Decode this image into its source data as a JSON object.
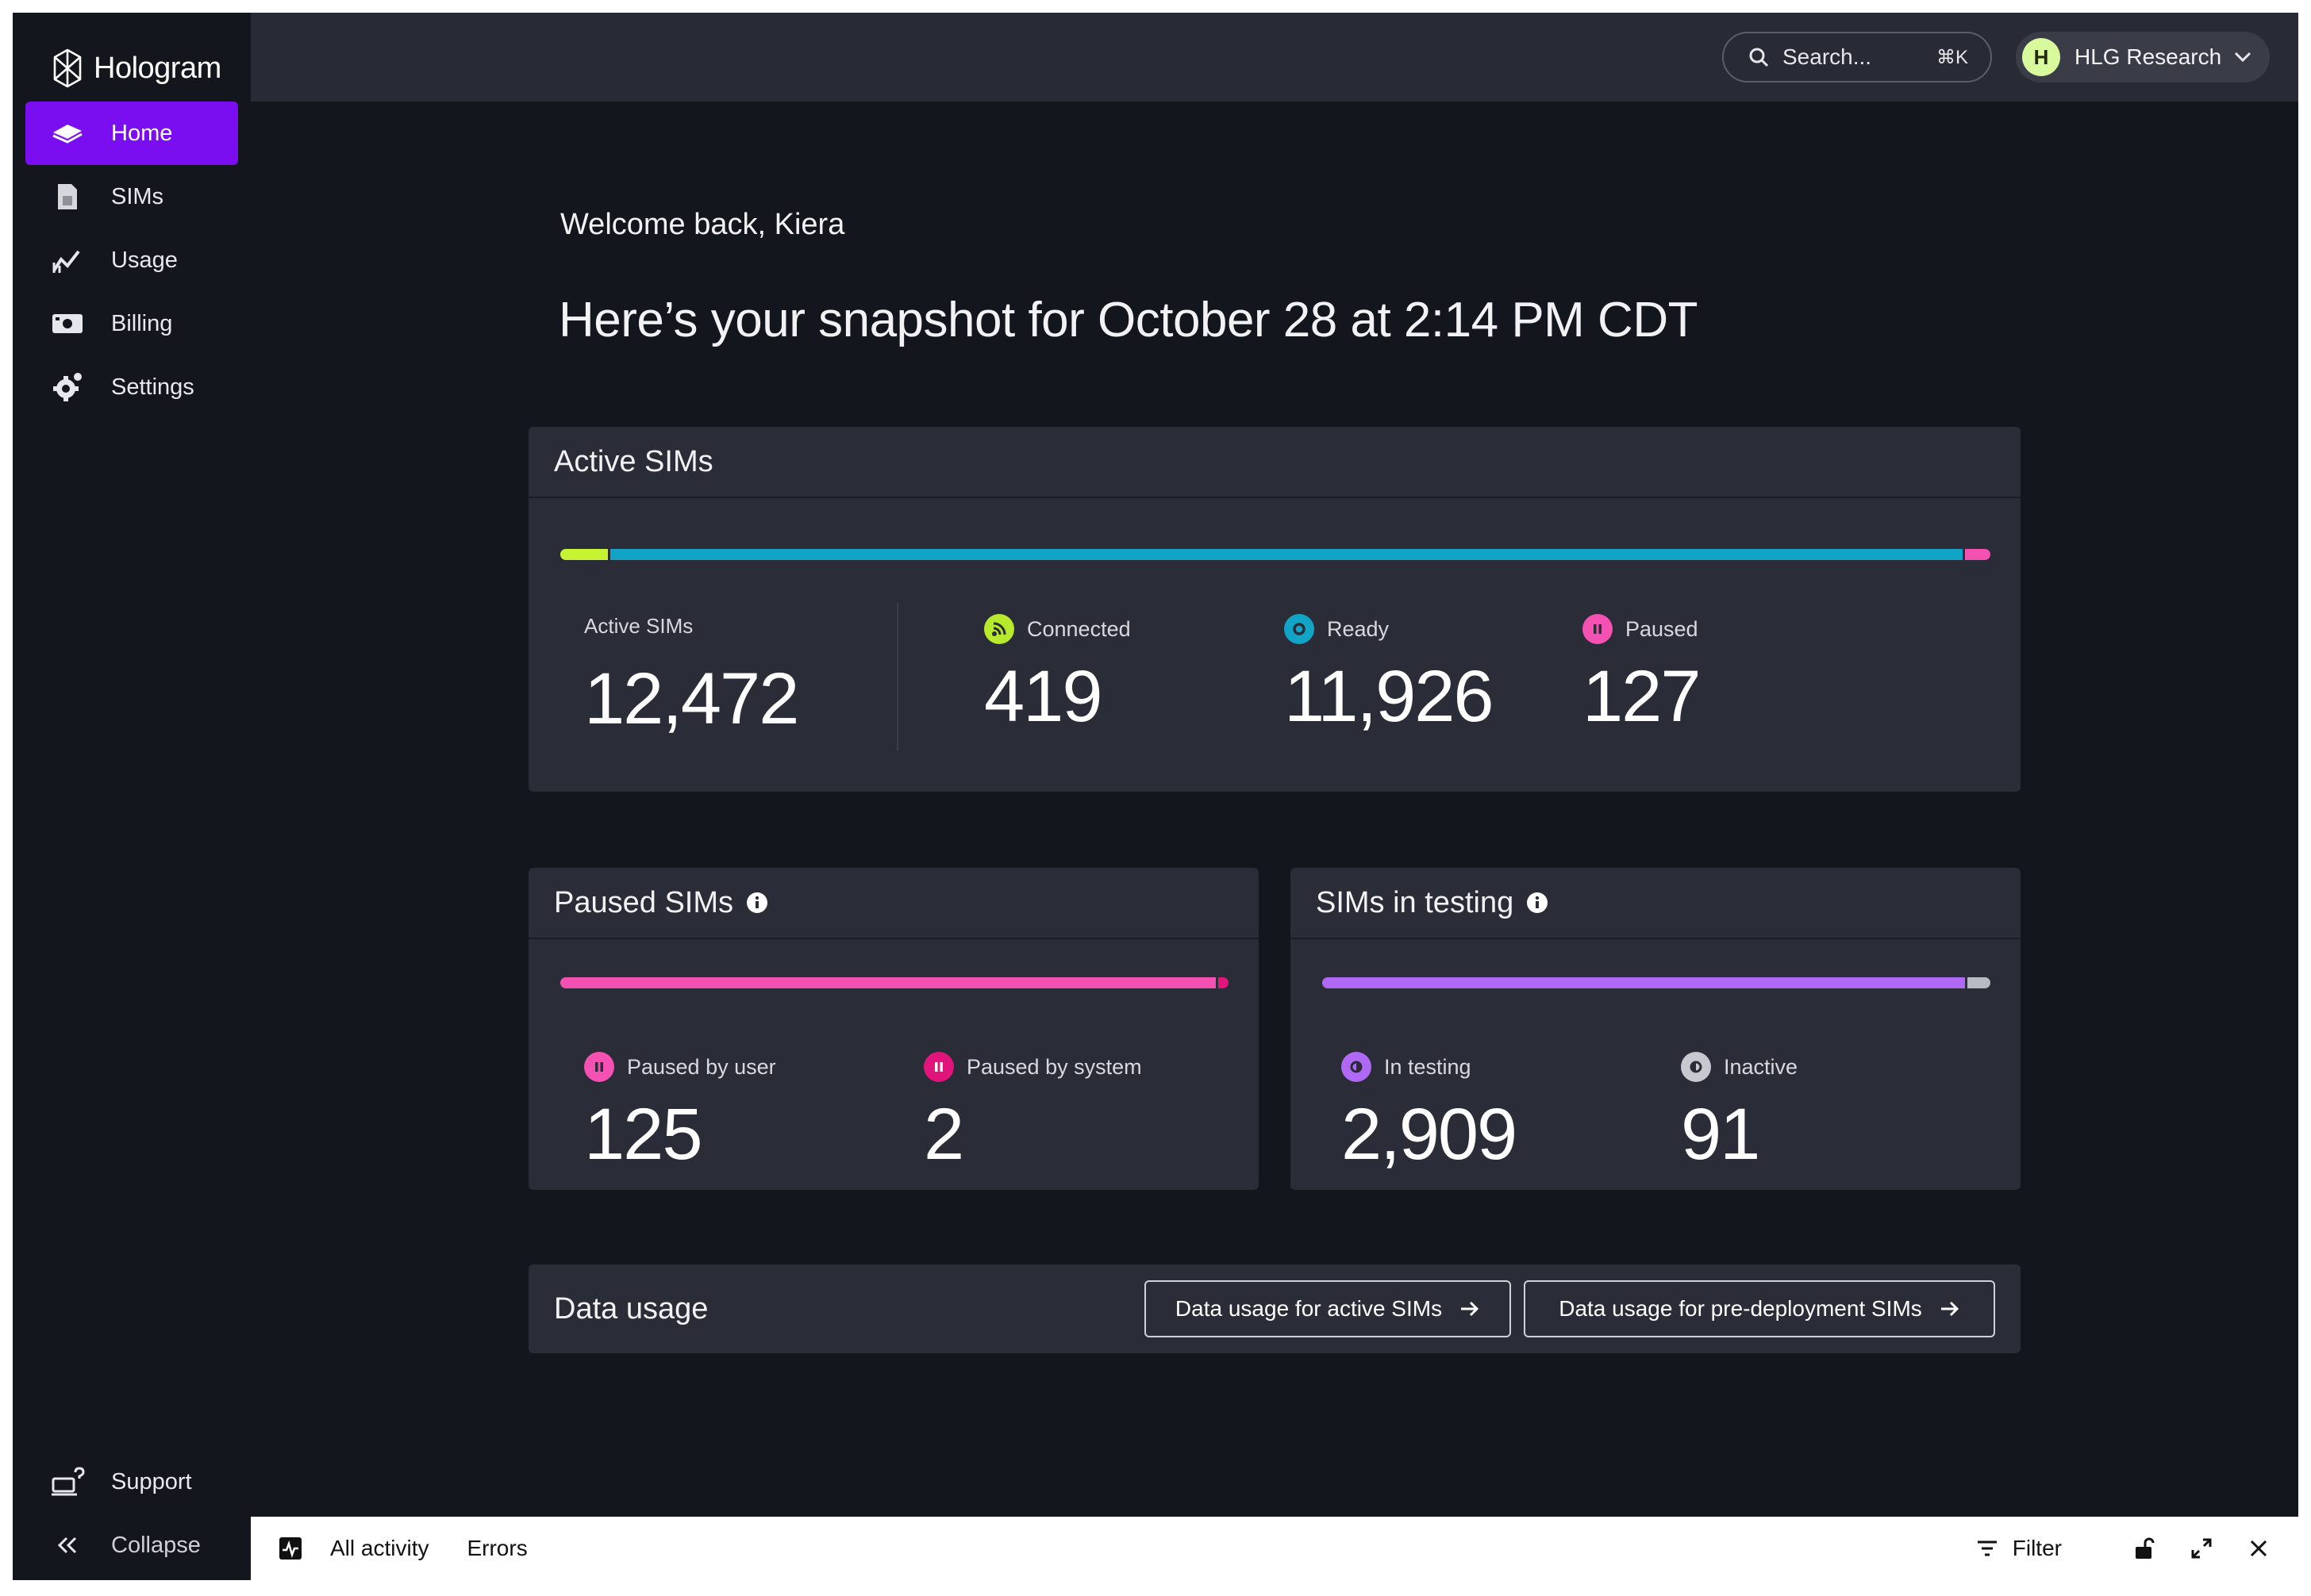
{
  "brand": {
    "name": "Hologram"
  },
  "sidebar": {
    "items": [
      {
        "label": "Home",
        "icon": "home-icon",
        "active": true
      },
      {
        "label": "SIMs",
        "icon": "sim-icon"
      },
      {
        "label": "Usage",
        "icon": "usage-chart-icon"
      },
      {
        "label": "Billing",
        "icon": "billing-icon"
      },
      {
        "label": "Settings",
        "icon": "gear-icon"
      }
    ],
    "bottom": [
      {
        "label": "Support",
        "icon": "support-icon"
      },
      {
        "label": "Collapse",
        "icon": "double-chevron-left-icon"
      }
    ]
  },
  "topbar": {
    "search_placeholder": "Search...",
    "search_shortcut": "⌘K",
    "account_initial": "H",
    "account_name": "HLG Research"
  },
  "main": {
    "welcome": "Welcome back, Kiera",
    "snapshot": "Here’s your snapshot for October 28 at 2:14 PM CDT"
  },
  "active_sims": {
    "title": "Active SIMs",
    "total_label": "Active SIMs",
    "total_value": "12,472",
    "bar": [
      {
        "name": "Connected",
        "value": 419,
        "color": "#c6f432"
      },
      {
        "name": "Ready",
        "value": 11926,
        "color": "#12a4c7"
      },
      {
        "name": "Paused",
        "value": 127,
        "color": "#f551b3"
      }
    ],
    "stats": [
      {
        "label": "Connected",
        "value": "419",
        "color": "#b7ea2c"
      },
      {
        "label": "Ready",
        "value": "11,926",
        "color": "#12a4c7"
      },
      {
        "label": "Paused",
        "value": "127",
        "color": "#f551b3"
      }
    ]
  },
  "paused_sims": {
    "title": "Paused SIMs",
    "bar": [
      {
        "name": "Paused by user",
        "value": 125,
        "color": "#f551b3"
      },
      {
        "name": "Paused by system",
        "value": 2,
        "color": "#e0147a"
      }
    ],
    "stats": [
      {
        "label": "Paused by user",
        "value": "125",
        "color": "#f551b3"
      },
      {
        "label": "Paused by system",
        "value": "2",
        "color": "#e0147a"
      }
    ]
  },
  "testing_sims": {
    "title": "SIMs in testing",
    "bar": [
      {
        "name": "In testing",
        "value": 2909,
        "color": "#b069f5"
      },
      {
        "name": "Inactive",
        "value": 91,
        "color": "#b9bbc4"
      }
    ],
    "stats": [
      {
        "label": "In testing",
        "value": "2,909",
        "color": "#b069f5"
      },
      {
        "label": "Inactive",
        "value": "91",
        "color": "#c8c9d0"
      }
    ]
  },
  "data_usage": {
    "title": "Data usage",
    "btn_active": "Data usage for active SIMs",
    "btn_predeploy": "Data usage for pre-deployment SIMs"
  },
  "activity_bar": {
    "tab_all": "All activity",
    "tab_errors": "Errors",
    "filter": "Filter"
  }
}
